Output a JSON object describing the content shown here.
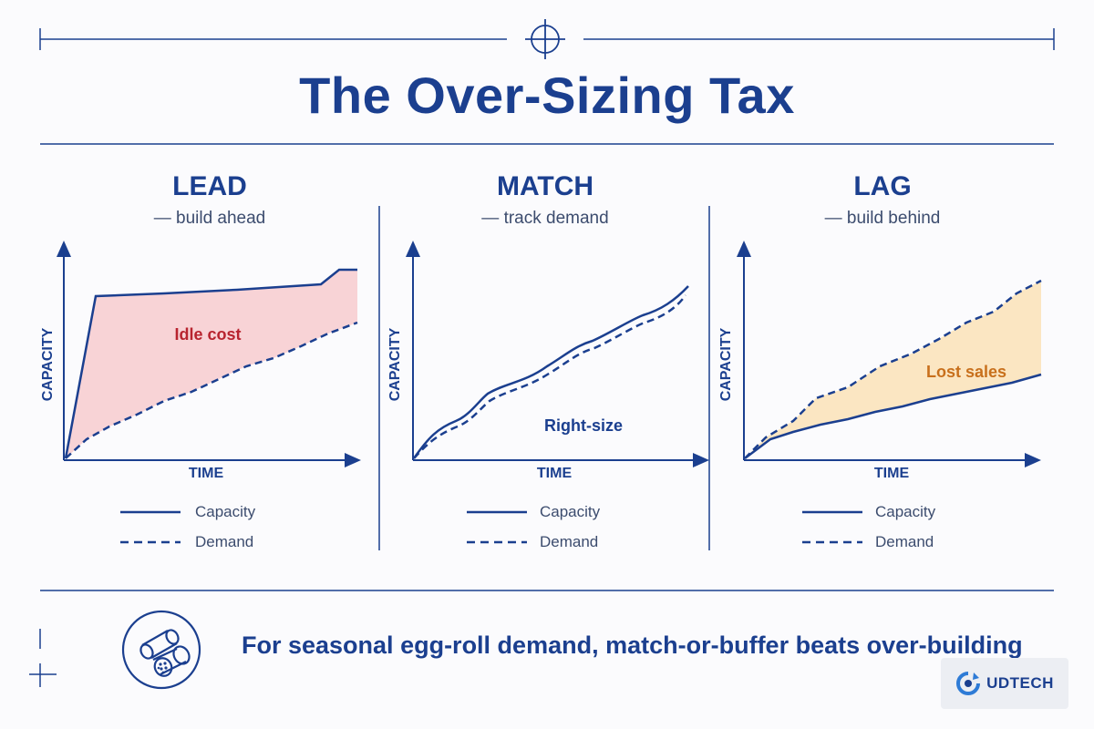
{
  "title": "The Over-Sizing Tax",
  "panels": [
    {
      "heading": "LEAD",
      "subtitle": "— build ahead",
      "area_label": "Idle cost",
      "ylabel": "CAPACITY",
      "xlabel": "TIME",
      "legend": {
        "capacity": "Capacity",
        "demand": "Demand"
      }
    },
    {
      "heading": "MATCH",
      "subtitle": "— track demand",
      "area_label": "Right-size",
      "ylabel": "CAPACITY",
      "xlabel": "TIME",
      "legend": {
        "capacity": "Capacity",
        "demand": "Demand"
      }
    },
    {
      "heading": "LAG",
      "subtitle": "— build behind",
      "area_label": "Lost sales",
      "ylabel": "CAPACITY",
      "xlabel": "TIME",
      "legend": {
        "capacity": "Capacity",
        "demand": "Demand"
      }
    }
  ],
  "takeaway": "For seasonal egg-roll demand, match-or-buffer beats over-building",
  "brand": "UDTECH",
  "icons": {
    "crosshair": "crosshair-icon",
    "egg_roll": "egg-roll-icon",
    "brand_logo": "gear-arrow-icon"
  },
  "colors": {
    "primary": "#1b3f8f",
    "idle_cost_fill": "#f8d3d6",
    "idle_cost_text": "#b8242f",
    "lost_sales_fill": "#fbe6c2",
    "lost_sales_text": "#c8701c"
  }
}
